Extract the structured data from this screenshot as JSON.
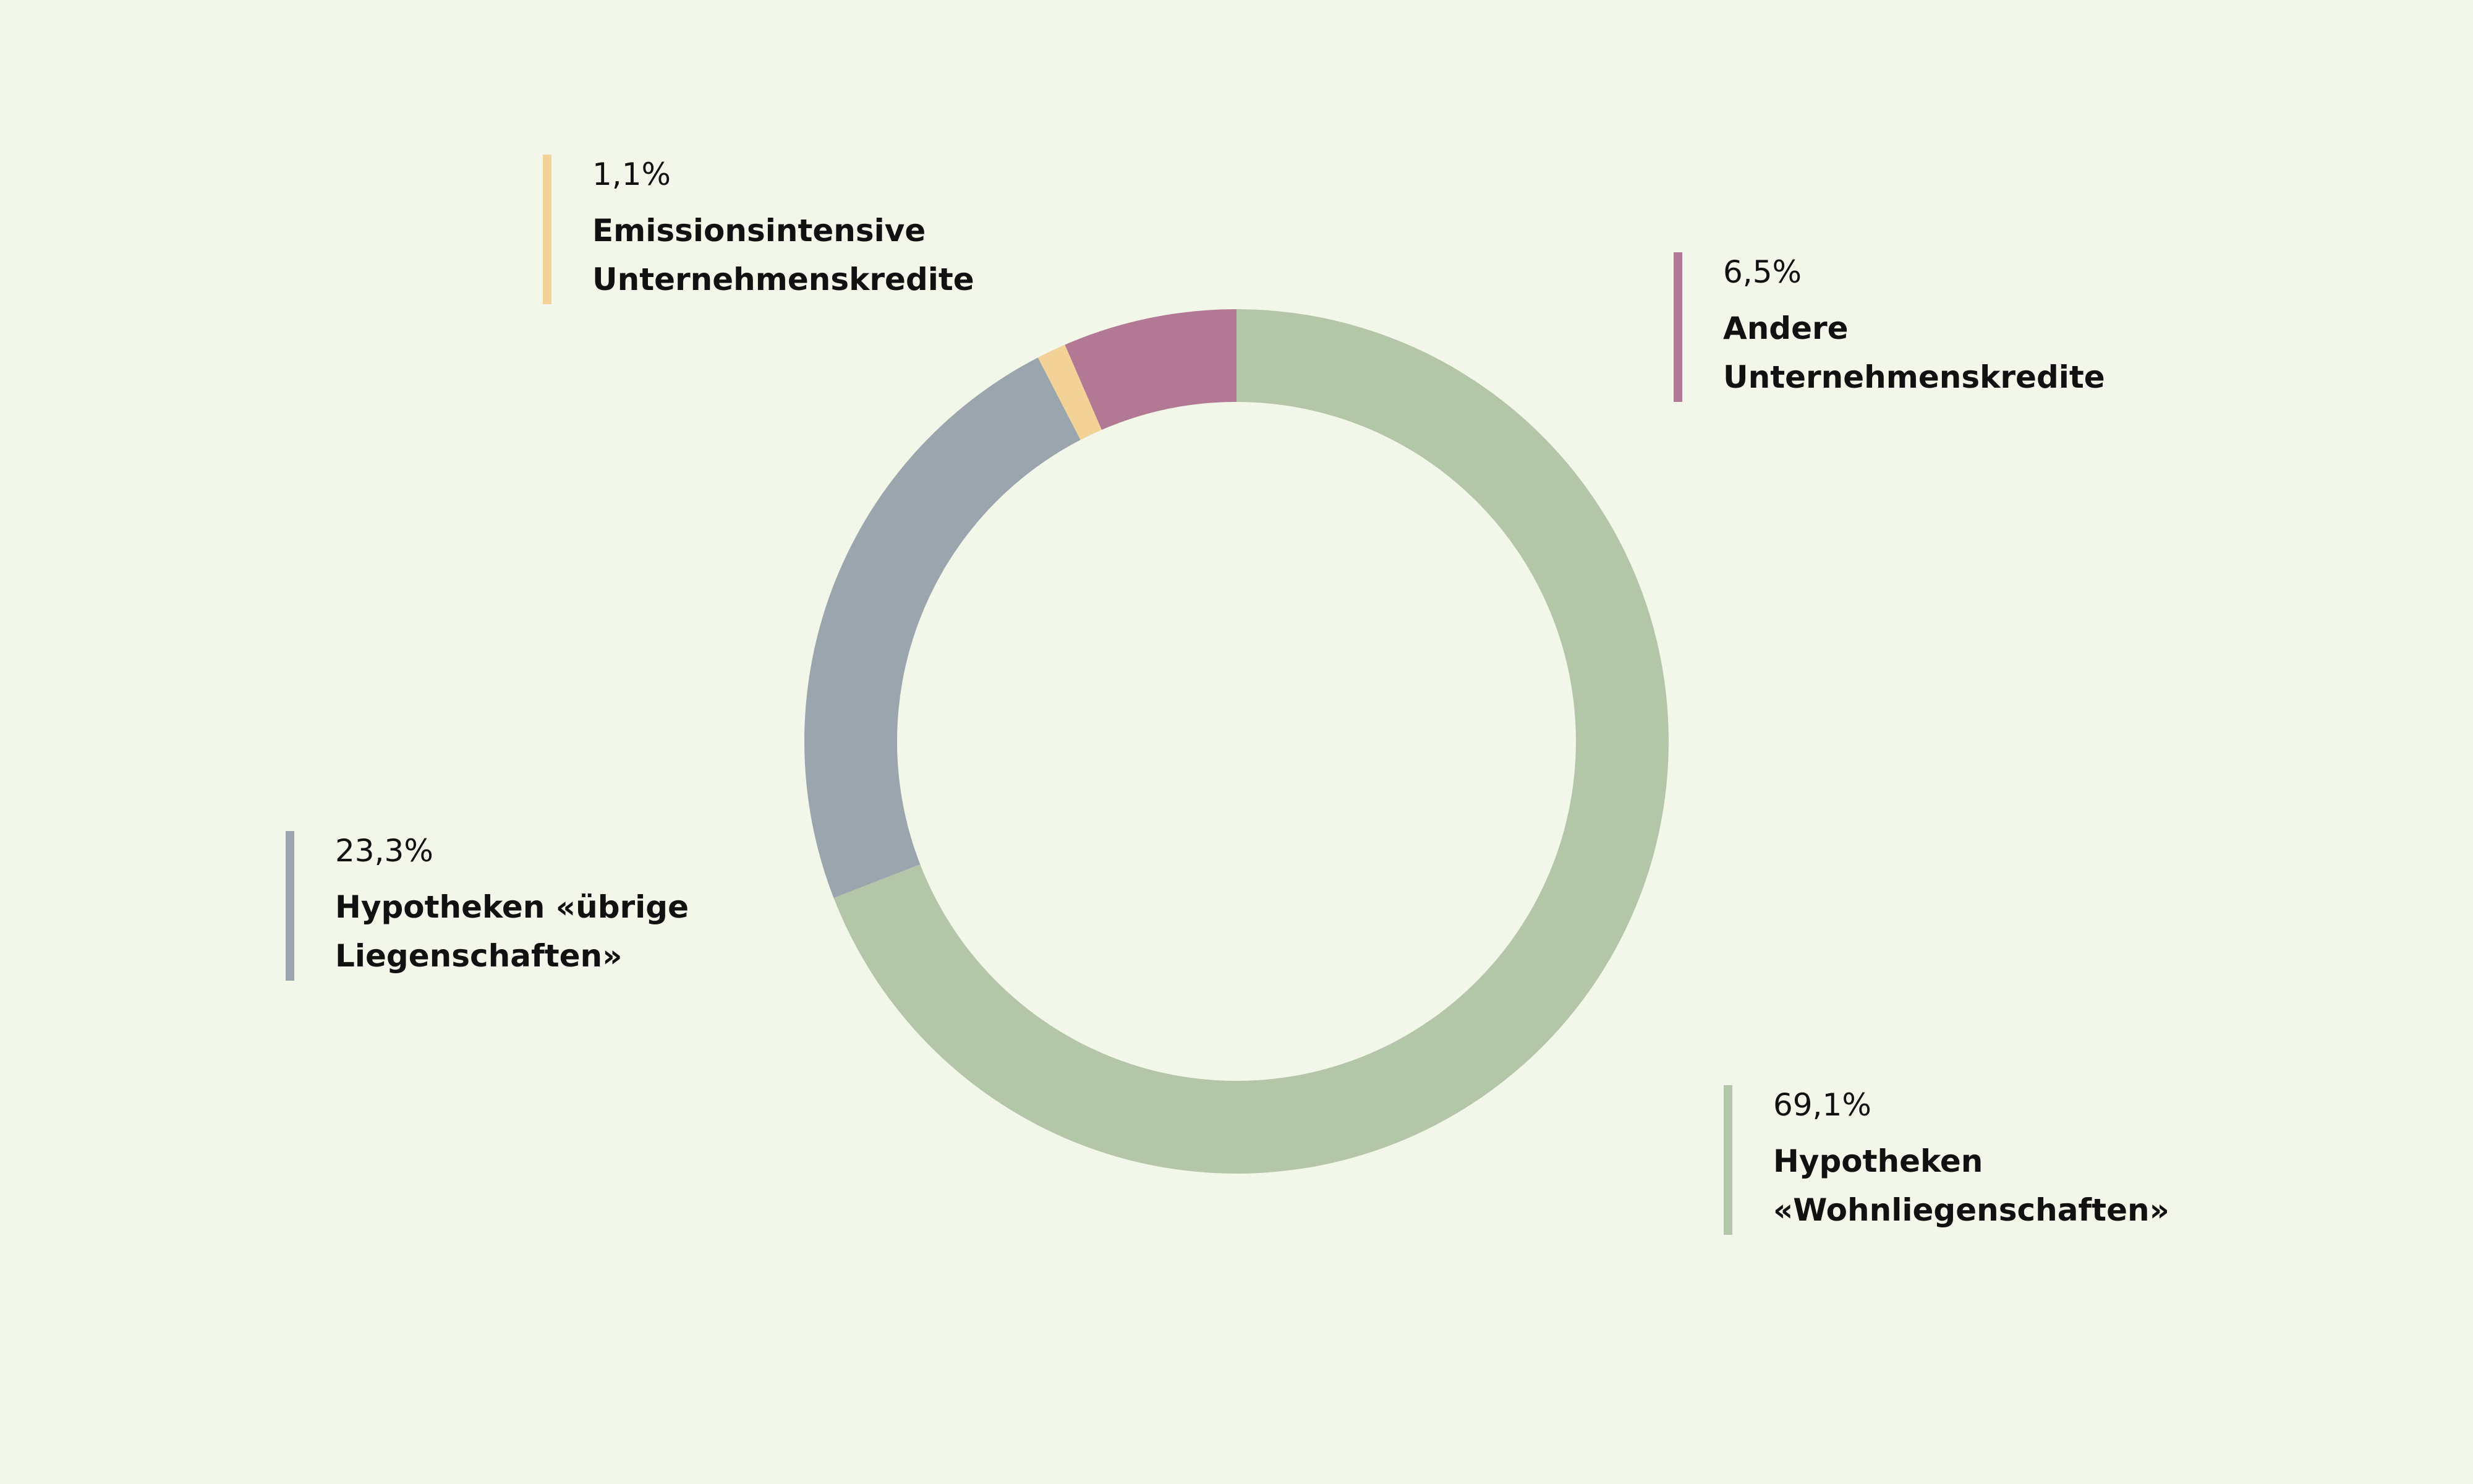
{
  "chart_data": {
    "type": "donut",
    "categories": [
      "Hypotheken\n«Wohnliegenschaften»",
      "Hypotheken «übrige\nLiegenschaften»",
      "Emissionsintensive\nUnternehmenskredite",
      "Andere\nUnternehmenskredite"
    ],
    "values": [
      69.1,
      23.3,
      1.1,
      6.5
    ],
    "value_labels": [
      "69,1%",
      "23,3%",
      "1,1%",
      "6,5%"
    ],
    "colors": [
      "#b4c6a8",
      "#9ba5ae",
      "#f2d296",
      "#b37893"
    ]
  }
}
